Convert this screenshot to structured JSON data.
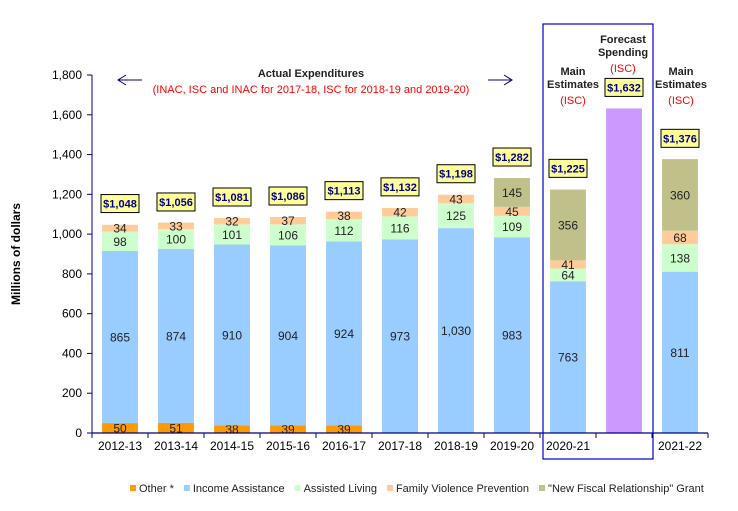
{
  "chart_data": {
    "type": "bar",
    "stacked": true,
    "ylabel": "Millions of dollars",
    "xlabel": "",
    "ylim": [
      0,
      1800
    ],
    "yticks": [
      0,
      200,
      400,
      600,
      800,
      1000,
      1200,
      1400,
      1600,
      1800
    ],
    "ytick_labels": [
      "0",
      "200",
      "400",
      "600",
      "800",
      "1,000",
      "1,200",
      "1,400",
      "1,600",
      "1,800"
    ],
    "grid": false,
    "legend_position": "bottom",
    "categories": [
      "2012-13",
      "2013-14",
      "2014-15",
      "2015-16",
      "2016-17",
      "2017-18",
      "2018-19",
      "2019-20",
      "2020-21",
      "",
      "2021-22"
    ],
    "series": [
      {
        "name": "Other *",
        "color": "#ff9900",
        "values": [
          50,
          51,
          38,
          39,
          39,
          null,
          null,
          null,
          null,
          null,
          null
        ],
        "labels": [
          "50",
          "51",
          "38",
          "39",
          "39",
          "",
          "",
          "",
          "",
          "",
          ""
        ]
      },
      {
        "name": "Income Assistance",
        "color": "#99ccff",
        "values": [
          865,
          874,
          910,
          904,
          924,
          973,
          1030,
          983,
          763,
          null,
          811
        ],
        "labels": [
          "865",
          "874",
          "910",
          "904",
          "924",
          "973",
          "1,030",
          "983",
          "763",
          "",
          "811"
        ]
      },
      {
        "name": "Assisted Living",
        "color": "#ccffcc",
        "values": [
          98,
          100,
          101,
          106,
          112,
          116,
          125,
          109,
          64,
          null,
          138
        ],
        "labels": [
          "98",
          "100",
          "101",
          "106",
          "112",
          "116",
          "125",
          "109",
          "64",
          "",
          "138"
        ]
      },
      {
        "name": "Family Violence Prevention",
        "color": "#ffcc99",
        "values": [
          34,
          33,
          32,
          37,
          38,
          42,
          43,
          45,
          41,
          null,
          68
        ],
        "labels": [
          "34",
          "33",
          "32",
          "37",
          "38",
          "42",
          "43",
          "45",
          "41",
          "",
          "68"
        ]
      },
      {
        "name": "\"New Fiscal Relationship\" Grant",
        "color": "#c0c08a",
        "values": [
          null,
          null,
          null,
          null,
          null,
          null,
          null,
          145,
          356,
          null,
          360
        ],
        "labels": [
          "",
          "",
          "",
          "",
          "",
          "",
          "",
          "145",
          "356",
          "",
          "360"
        ]
      },
      {
        "name": "Forecast Spending",
        "color": "#cc99ff",
        "values": [
          null,
          null,
          null,
          null,
          null,
          null,
          null,
          null,
          null,
          1632,
          null
        ],
        "labels": [
          "",
          "",
          "",
          "",
          "",
          "",
          "",
          "",
          "",
          "",
          ""
        ],
        "in_legend": false
      }
    ],
    "totals": [
      1048,
      1056,
      1081,
      1086,
      1113,
      1132,
      1198,
      1282,
      1225,
      1632,
      1376
    ],
    "total_labels": [
      "$1,048",
      "$1,056",
      "$1,081",
      "$1,086",
      "$1,113",
      "$1,132",
      "$1,198",
      "$1,282",
      "$1,225",
      "$1,632",
      "$1,376"
    ],
    "annotations": {
      "actual": {
        "title": "Actual Expenditures",
        "subtitle": "(INAC, ISC and INAC for 2017-18, ISC for 2018-19 and 2019-20)"
      },
      "main_2020": {
        "line1": "Main",
        "line2": "Estimates",
        "sub": "(ISC)"
      },
      "forecast": {
        "line1": "Forecast",
        "line2": "Spending",
        "sub": "(ISC)"
      },
      "main_2021": {
        "line1": "Main",
        "line2": "Estimates",
        "sub": "(ISC)"
      }
    },
    "colors": {
      "axis": "#000080",
      "total_box_fill": "#ffff99",
      "total_text": "#000080",
      "highlight_box": "#0000cc",
      "annotation_red": "#ff0000"
    }
  }
}
